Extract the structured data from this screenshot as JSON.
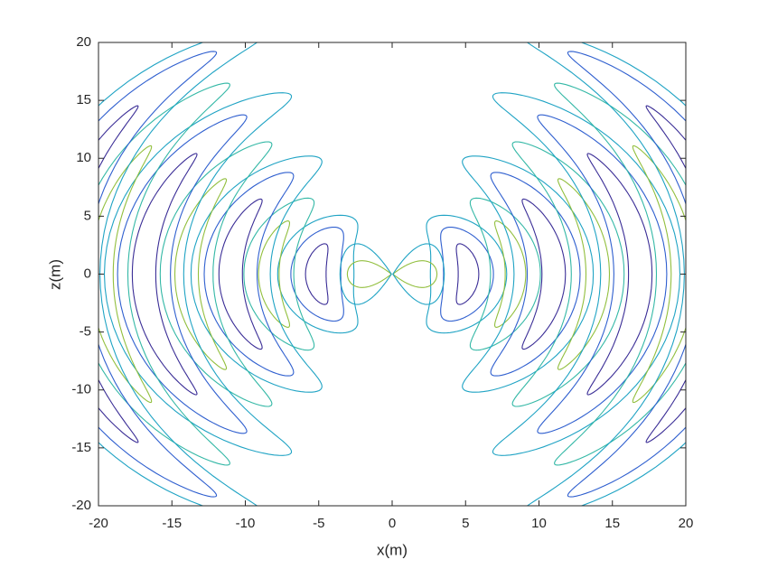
{
  "chart_data": {
    "type": "contour",
    "xlabel": "x(m)",
    "ylabel": "z(m)",
    "xlim": [
      -20,
      20
    ],
    "ylim": [
      -20,
      20
    ],
    "xticks": [
      -20,
      -15,
      -10,
      -5,
      0,
      5,
      10,
      15,
      20
    ],
    "yticks": [
      -20,
      -15,
      -10,
      -5,
      0,
      5,
      10,
      15,
      20
    ]
  }
}
